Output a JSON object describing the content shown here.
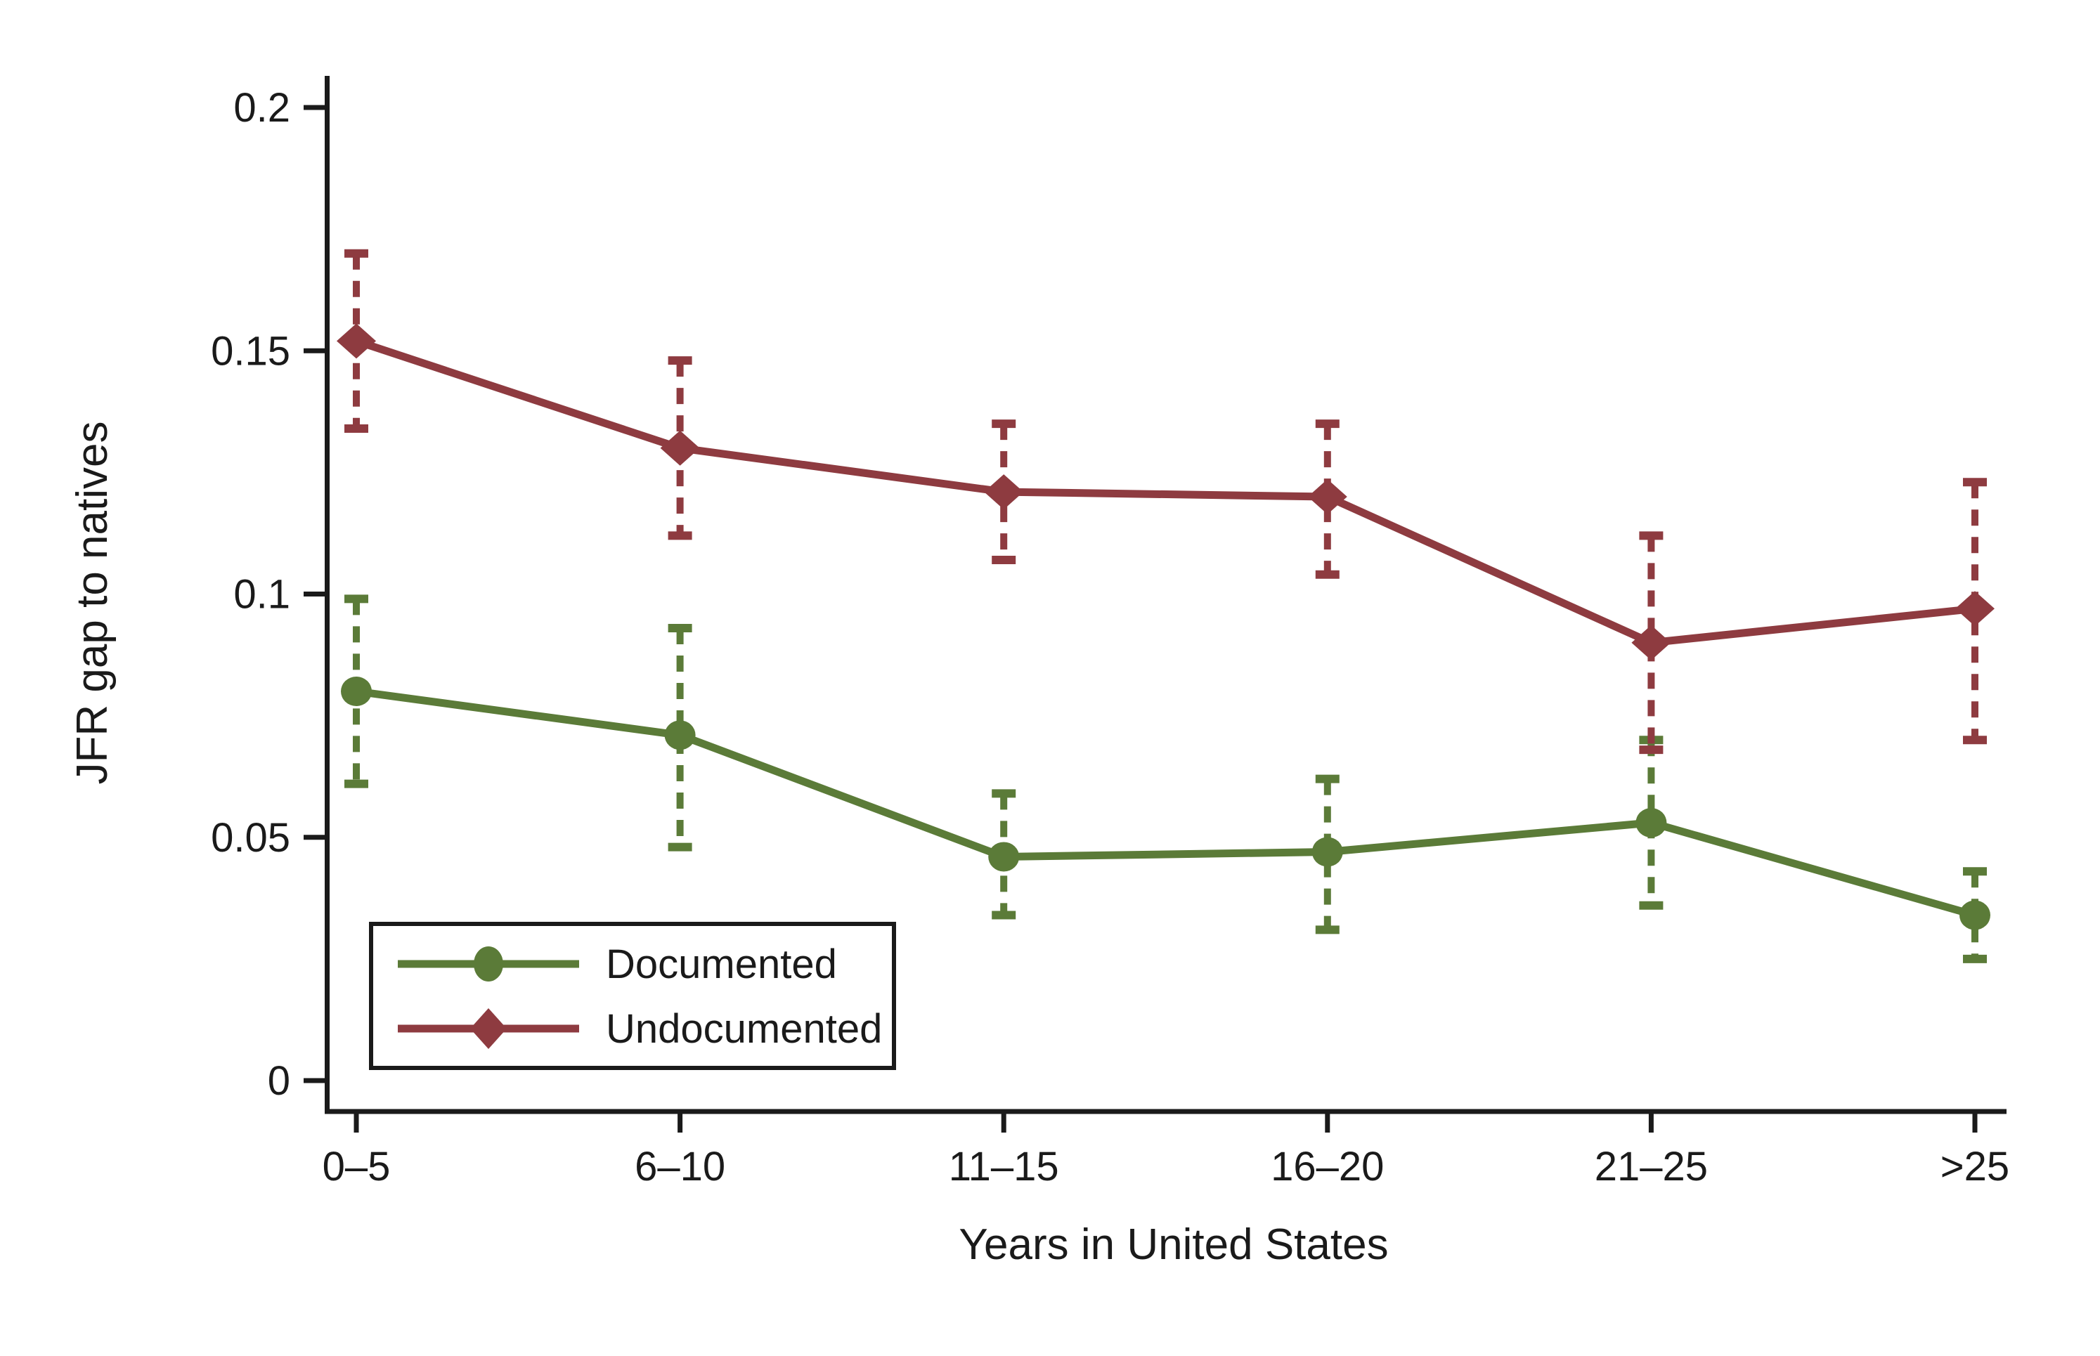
{
  "figure": {
    "background": "#ffffff",
    "text_color": "#1a1a1a",
    "axis_color": "#1a1a1a"
  },
  "chart_data": {
    "type": "line",
    "title": "",
    "xlabel": "Years in United States",
    "ylabel": "JFR gap to natives",
    "categories": [
      "0–5",
      "6–10",
      "11–15",
      "16–20",
      "21–25",
      ">25"
    ],
    "ylim": [
      0,
      0.2
    ],
    "yticks": [
      {
        "value": 0,
        "label": "0"
      },
      {
        "value": 0.05,
        "label": "0.05"
      },
      {
        "value": 0.1,
        "label": "0.1"
      },
      {
        "value": 0.15,
        "label": "0.15"
      },
      {
        "value": 0.2,
        "label": "0.2"
      }
    ],
    "grid": false,
    "error_bars": true,
    "error_bar_style": "dashed-with-caps",
    "legend_position": "inside-bottom-left",
    "series": [
      {
        "name": "Documented",
        "marker": "circle",
        "color": "#5b7b38",
        "line_style": "solid",
        "values": [
          0.08,
          0.071,
          0.046,
          0.047,
          0.053,
          0.034
        ],
        "ci_low": [
          0.061,
          0.048,
          0.034,
          0.031,
          0.036,
          0.025
        ],
        "ci_high": [
          0.099,
          0.093,
          0.059,
          0.062,
          0.07,
          0.043
        ]
      },
      {
        "name": "Undocumented",
        "marker": "diamond",
        "color": "#8e3b40",
        "line_style": "solid",
        "values": [
          0.152,
          0.13,
          0.121,
          0.12,
          0.09,
          0.097
        ],
        "ci_low": [
          0.134,
          0.112,
          0.107,
          0.104,
          0.068,
          0.07
        ],
        "ci_high": [
          0.17,
          0.148,
          0.135,
          0.135,
          0.112,
          0.123
        ]
      }
    ]
  },
  "legend": {
    "items": [
      {
        "label": "Documented"
      },
      {
        "label": "Undocumented"
      }
    ]
  }
}
